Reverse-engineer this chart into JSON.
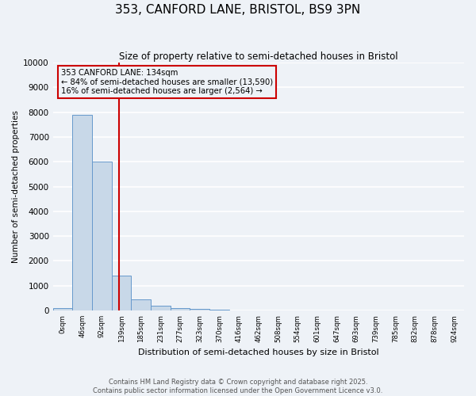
{
  "title": "353, CANFORD LANE, BRISTOL, BS9 3PN",
  "subtitle": "Size of property relative to semi-detached houses in Bristol",
  "xlabel": "Distribution of semi-detached houses by size in Bristol",
  "ylabel": "Number of semi-detached properties",
  "bin_labels": [
    "0sqm",
    "46sqm",
    "92sqm",
    "139sqm",
    "185sqm",
    "231sqm",
    "277sqm",
    "323sqm",
    "370sqm",
    "416sqm",
    "462sqm",
    "508sqm",
    "554sqm",
    "601sqm",
    "647sqm",
    "693sqm",
    "739sqm",
    "785sqm",
    "832sqm",
    "878sqm",
    "924sqm"
  ],
  "bar_values": [
    100,
    7900,
    6000,
    1400,
    450,
    200,
    100,
    50,
    20,
    10,
    5,
    2,
    1,
    1,
    0,
    0,
    0,
    0,
    0,
    0,
    0
  ],
  "bar_color": "#c8d8e8",
  "bar_edge_color": "#6699cc",
  "vline_x": 2.894,
  "vline_color": "#cc0000",
  "annotation_line1": "353 CANFORD LANE: 134sqm",
  "annotation_line2": "← 84% of semi-detached houses are smaller (13,590)",
  "annotation_line3": "16% of semi-detached houses are larger (2,564) →",
  "ylim": [
    0,
    10000
  ],
  "yticks": [
    0,
    1000,
    2000,
    3000,
    4000,
    5000,
    6000,
    7000,
    8000,
    9000,
    10000
  ],
  "background_color": "#eef2f7",
  "grid_color": "#ffffff",
  "footer_line1": "Contains HM Land Registry data © Crown copyright and database right 2025.",
  "footer_line2": "Contains public sector information licensed under the Open Government Licence v3.0."
}
